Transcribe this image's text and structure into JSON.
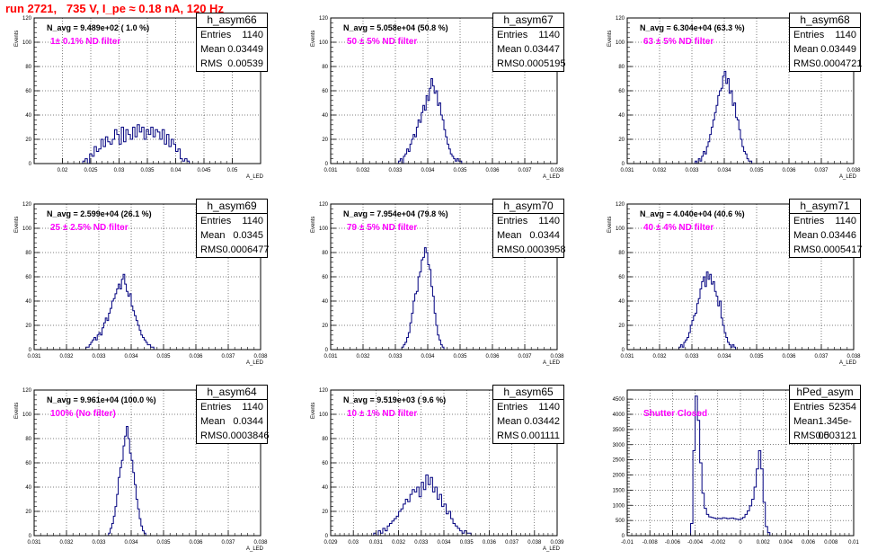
{
  "page": {
    "title": "run 2721,   735 V, I_pe ≈ 0.18 nA, 120 Hz"
  },
  "colors": {
    "histogram": "#00007f",
    "title": "#ff0000",
    "filter_label": "#ff00ff"
  },
  "stats_labels": {
    "entries": "Entries",
    "mean": "Mean",
    "rms": "RMS"
  },
  "chart_data": [
    {
      "type": "histogram",
      "name": "h_asym66",
      "navg_label": "N_avg = 9.489e+02 ( 1.0 %)",
      "filter_label": "1± 0.1% ND filter",
      "stats": {
        "entries": "1140",
        "mean": "0.03449",
        "rms": "0.00539"
      },
      "ylabel": "Events",
      "xlabel": "A_LED",
      "xlim": [
        0.015,
        0.055
      ],
      "ylim": [
        0,
        120
      ],
      "xticks": [
        0.02,
        0.025,
        0.03,
        0.035,
        0.04,
        0.045,
        0.05
      ],
      "xtick_labels": [
        "0.02",
        "0.025",
        "0.03",
        "0.035",
        "0.04",
        "0.045",
        "0.05"
      ],
      "yticks": [
        0,
        20,
        40,
        60,
        80,
        100,
        120
      ],
      "bins_start": 0.0236,
      "bin_width": 0.0004,
      "values": [
        2,
        4,
        0,
        8,
        6,
        14,
        10,
        12,
        20,
        14,
        22,
        18,
        16,
        20,
        28,
        24,
        16,
        30,
        18,
        28,
        24,
        20,
        30,
        22,
        32,
        26,
        30,
        20,
        28,
        24,
        30,
        22,
        28,
        26,
        20,
        28,
        16,
        24,
        14,
        20,
        16,
        10,
        12,
        4,
        2,
        4,
        2,
        0
      ],
      "grid": true
    },
    {
      "type": "histogram",
      "name": "h_asym67",
      "navg_label": "N_avg = 5.058e+04 (50.8 %)",
      "filter_label": "50 ± 5% ND filter",
      "stats": {
        "entries": "1140",
        "mean": "0.03447",
        "rms": "0.0005195"
      },
      "ylabel": "Events",
      "xlabel": "A_LED",
      "xlim": [
        0.031,
        0.038
      ],
      "ylim": [
        0,
        120
      ],
      "xticks": [
        0.031,
        0.032,
        0.033,
        0.034,
        0.035,
        0.036,
        0.037,
        0.038
      ],
      "xtick_labels": [
        "0.031",
        "0.032",
        "0.033",
        "0.034",
        "0.035",
        "0.036",
        "0.037",
        "0.038"
      ],
      "yticks": [
        0,
        20,
        40,
        60,
        80,
        100,
        120
      ],
      "bins_start": 0.0331,
      "bin_width": 5e-05,
      "values": [
        2,
        4,
        0,
        6,
        8,
        12,
        10,
        16,
        20,
        24,
        22,
        30,
        36,
        34,
        42,
        48,
        44,
        56,
        52,
        62,
        70,
        64,
        58,
        60,
        48,
        50,
        40,
        36,
        28,
        22,
        16,
        12,
        8,
        6,
        4,
        2,
        4,
        2,
        2,
        0
      ],
      "grid": true
    },
    {
      "type": "histogram",
      "name": "h_asym68",
      "navg_label": "N_avg = 6.304e+04 (63.3 %)",
      "filter_label": "63 ± 5% ND filter",
      "stats": {
        "entries": "1140",
        "mean": "0.03449",
        "rms": "0.0004721"
      },
      "ylabel": "Events",
      "xlabel": "A_LED",
      "xlim": [
        0.031,
        0.038
      ],
      "ylim": [
        0,
        120
      ],
      "xticks": [
        0.031,
        0.032,
        0.033,
        0.034,
        0.035,
        0.036,
        0.037,
        0.038
      ],
      "xtick_labels": [
        "0.031",
        "0.032",
        "0.033",
        "0.034",
        "0.035",
        "0.036",
        "0.037",
        "0.038"
      ],
      "yticks": [
        0,
        20,
        40,
        60,
        80,
        100,
        120
      ],
      "bins_start": 0.0331,
      "bin_width": 5e-05,
      "values": [
        2,
        0,
        4,
        2,
        6,
        10,
        8,
        14,
        18,
        24,
        30,
        36,
        42,
        48,
        56,
        60,
        62,
        72,
        76,
        66,
        70,
        58,
        60,
        48,
        50,
        38,
        36,
        28,
        20,
        14,
        10,
        8,
        4,
        2,
        2,
        0
      ],
      "grid": true
    },
    {
      "type": "histogram",
      "name": "h_asym69",
      "navg_label": "N_avg = 2.599e+04 (26.1 %)",
      "filter_label": "25 ± 2.5% ND filter",
      "stats": {
        "entries": "1140",
        "mean": "0.0345",
        "rms": "0.0006477"
      },
      "ylabel": "Events",
      "xlabel": "A_LED",
      "xlim": [
        0.031,
        0.038
      ],
      "ylim": [
        0,
        120
      ],
      "xticks": [
        0.031,
        0.032,
        0.033,
        0.034,
        0.035,
        0.036,
        0.037,
        0.038
      ],
      "xtick_labels": [
        "0.031",
        "0.032",
        "0.033",
        "0.034",
        "0.035",
        "0.036",
        "0.037",
        "0.038"
      ],
      "yticks": [
        0,
        20,
        40,
        60,
        80,
        100,
        120
      ],
      "bins_start": 0.0326,
      "bin_width": 5e-05,
      "values": [
        2,
        2,
        4,
        6,
        8,
        10,
        8,
        12,
        14,
        12,
        18,
        22,
        26,
        24,
        30,
        34,
        40,
        42,
        46,
        50,
        54,
        50,
        58,
        62,
        54,
        48,
        44,
        46,
        36,
        32,
        28,
        24,
        20,
        16,
        12,
        10,
        8,
        6,
        4,
        4,
        2,
        2,
        0
      ],
      "grid": true
    },
    {
      "type": "histogram",
      "name": "h_asym70",
      "navg_label": "N_avg = 7.954e+04 (79.8 %)",
      "filter_label": "79 ± 5% ND filter",
      "stats": {
        "entries": "1140",
        "mean": "0.0344",
        "rms": "0.0003958"
      },
      "ylabel": "Events",
      "xlabel": "A_LED",
      "xlim": [
        0.031,
        0.038
      ],
      "ylim": [
        0,
        120
      ],
      "xticks": [
        0.031,
        0.032,
        0.033,
        0.034,
        0.035,
        0.036,
        0.037,
        0.038
      ],
      "xtick_labels": [
        "0.031",
        "0.032",
        "0.033",
        "0.034",
        "0.035",
        "0.036",
        "0.037",
        "0.038"
      ],
      "yticks": [
        0,
        20,
        40,
        60,
        80,
        100,
        120
      ],
      "bins_start": 0.0332,
      "bin_width": 5e-05,
      "values": [
        2,
        4,
        6,
        10,
        14,
        22,
        30,
        40,
        46,
        48,
        60,
        64,
        74,
        76,
        84,
        80,
        70,
        66,
        52,
        44,
        30,
        20,
        12,
        8,
        4,
        2,
        0
      ],
      "grid": true
    },
    {
      "type": "histogram",
      "name": "h_asym71",
      "navg_label": "N_avg = 4.040e+04 (40.6 %)",
      "filter_label": "40 ± 4% ND filter",
      "stats": {
        "entries": "1140",
        "mean": "0.03446",
        "rms": "0.0005417"
      },
      "ylabel": "Events",
      "xlabel": "A_LED",
      "xlim": [
        0.031,
        0.038
      ],
      "ylim": [
        0,
        120
      ],
      "xticks": [
        0.031,
        0.032,
        0.033,
        0.034,
        0.035,
        0.036,
        0.037,
        0.038
      ],
      "xtick_labels": [
        "0.031",
        "0.032",
        "0.033",
        "0.034",
        "0.035",
        "0.036",
        "0.037",
        "0.038"
      ],
      "yticks": [
        0,
        20,
        40,
        60,
        80,
        100,
        120
      ],
      "bins_start": 0.0326,
      "bin_width": 5e-05,
      "values": [
        2,
        4,
        2,
        6,
        8,
        10,
        14,
        20,
        24,
        28,
        30,
        38,
        42,
        50,
        56,
        60,
        52,
        64,
        58,
        62,
        54,
        56,
        48,
        44,
        36,
        40,
        26,
        20,
        14,
        10,
        6,
        4,
        2,
        4,
        2,
        0
      ],
      "grid": true
    },
    {
      "type": "histogram",
      "name": "h_asym64",
      "navg_label": "N_avg = 9.961e+04 (100.0 %)",
      "filter_label": "100% (No filter)",
      "stats": {
        "entries": "1140",
        "mean": "0.0344",
        "rms": "0.0003846"
      },
      "ylabel": "Events",
      "xlabel": "A_LED",
      "xlim": [
        0.031,
        0.038
      ],
      "ylim": [
        0,
        120
      ],
      "xticks": [
        0.031,
        0.032,
        0.033,
        0.034,
        0.035,
        0.036,
        0.037,
        0.038
      ],
      "xtick_labels": [
        "0.031",
        "0.032",
        "0.033",
        "0.034",
        "0.035",
        "0.036",
        "0.037",
        "0.038"
      ],
      "yticks": [
        0,
        20,
        40,
        60,
        80,
        100,
        120
      ],
      "bins_start": 0.0333,
      "bin_width": 5e-05,
      "values": [
        2,
        6,
        10,
        16,
        24,
        34,
        48,
        56,
        62,
        74,
        82,
        90,
        80,
        68,
        62,
        52,
        42,
        30,
        22,
        14,
        8,
        4,
        2,
        0
      ],
      "grid": true
    },
    {
      "type": "histogram",
      "name": "h_asym65",
      "navg_label": "N_avg = 9.519e+03 ( 9.6 %)",
      "filter_label": "10 ± 1% ND filter",
      "stats": {
        "entries": "1140",
        "mean": "0.03442",
        "rms": "0.001111"
      },
      "ylabel": "Events",
      "xlabel": "A_LED",
      "xlim": [
        0.029,
        0.039
      ],
      "ylim": [
        0,
        120
      ],
      "xticks": [
        0.029,
        0.03,
        0.031,
        0.032,
        0.033,
        0.034,
        0.035,
        0.036,
        0.037,
        0.038,
        0.039
      ],
      "xtick_labels": [
        "0.029",
        "0.03",
        "0.031",
        "0.032",
        "0.033",
        "0.034",
        "0.035",
        "0.036",
        "0.037",
        "0.038",
        "0.039"
      ],
      "yticks": [
        0,
        20,
        40,
        60,
        80,
        100,
        120
      ],
      "bins_start": 0.0309,
      "bin_width": 0.0001,
      "values": [
        2,
        0,
        4,
        2,
        6,
        4,
        8,
        10,
        12,
        14,
        16,
        20,
        22,
        26,
        30,
        28,
        34,
        38,
        36,
        40,
        32,
        44,
        38,
        50,
        42,
        48,
        36,
        40,
        30,
        34,
        24,
        26,
        18,
        20,
        14,
        10,
        8,
        6,
        4,
        2,
        4,
        2,
        2,
        0
      ],
      "grid": true
    },
    {
      "type": "histogram",
      "name": "hPed_asym",
      "navg_label": "",
      "filter_label": "Shutter Closed",
      "stats": {
        "entries": "52354",
        "mean": "1.345e-05",
        "rms": "0.003121"
      },
      "ylabel": "",
      "xlabel": "",
      "xlim": [
        -0.01,
        0.01
      ],
      "ylim": [
        0,
        4800
      ],
      "xticks": [
        -0.01,
        -0.008,
        -0.006,
        -0.004,
        -0.002,
        0,
        0.002,
        0.004,
        0.006,
        0.008,
        0.01
      ],
      "xtick_labels": [
        "-0.01",
        "-0.008",
        "-0.006",
        "-0.004",
        "-0.002",
        "0",
        "0.002",
        "0.004",
        "0.006",
        "0.008",
        "0.01"
      ],
      "yticks": [
        0,
        500,
        1000,
        1500,
        2000,
        2500,
        3000,
        3500,
        4000,
        4500
      ],
      "bins_start": -0.0044,
      "bin_width": 0.0002,
      "values": [
        400,
        2800,
        4600,
        3800,
        2400,
        1400,
        900,
        700,
        620,
        600,
        580,
        560,
        570,
        560,
        590,
        580,
        560,
        570,
        580,
        560,
        540,
        530,
        560,
        600,
        700,
        820,
        980,
        1200,
        1600,
        2200,
        2800,
        2200,
        1100,
        300,
        100,
        0
      ],
      "grid": true
    }
  ]
}
